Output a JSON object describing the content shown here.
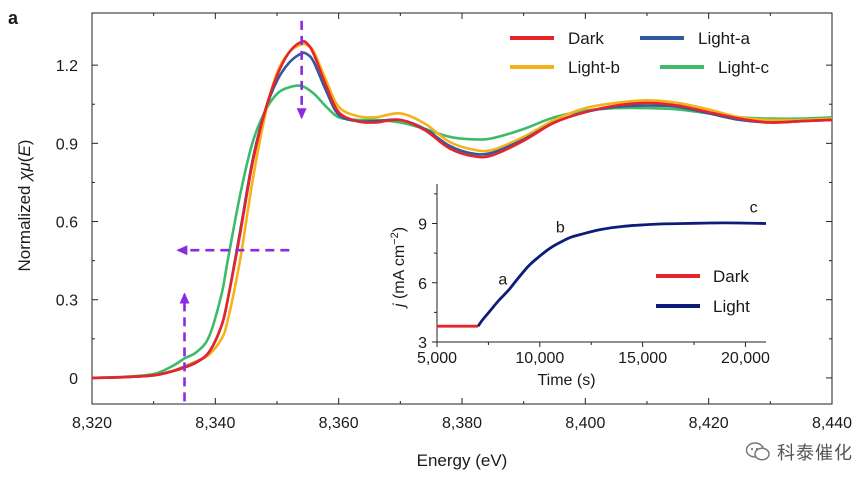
{
  "panel_label": "a",
  "watermark": {
    "text": "科泰催化",
    "icon": "wechat-icon"
  },
  "chart_data": [
    {
      "type": "line",
      "title": "",
      "xlabel": "Energy (eV)",
      "ylabel_parts": [
        "Normalized ",
        "χμ",
        "(",
        "E",
        ")"
      ],
      "xlim": [
        8320,
        8440
      ],
      "ylim": [
        -0.1,
        1.4
      ],
      "xticks": [
        8320,
        8340,
        8360,
        8380,
        8400,
        8420,
        8440
      ],
      "xtick_labels": [
        "8,320",
        "8,340",
        "8,360",
        "8,380",
        "8,400",
        "8,420",
        "8,440"
      ],
      "yticks": [
        0,
        0.3,
        0.6,
        0.9,
        1.2
      ],
      "ytick_labels": [
        "0",
        "0.3",
        "0.6",
        "0.9",
        "1.2"
      ],
      "legend_position": "top-right",
      "legend_columns": 2,
      "series": [
        {
          "name": "Dark",
          "color": "#e8242b",
          "x": [
            8320,
            8325,
            8330,
            8333,
            8335,
            8337,
            8339,
            8341,
            8342,
            8344,
            8346,
            8348,
            8350,
            8352,
            8354,
            8355,
            8356,
            8358,
            8360,
            8363,
            8366,
            8370,
            8374,
            8378,
            8382,
            8385,
            8390,
            8395,
            8400,
            8405,
            8410,
            8415,
            8420,
            8425,
            8430,
            8435,
            8440
          ],
          "y": [
            0,
            0.003,
            0.01,
            0.025,
            0.04,
            0.06,
            0.1,
            0.2,
            0.3,
            0.55,
            0.82,
            1.02,
            1.16,
            1.25,
            1.29,
            1.28,
            1.24,
            1.12,
            1.02,
            0.985,
            0.98,
            0.99,
            0.95,
            0.88,
            0.85,
            0.855,
            0.91,
            0.98,
            1.02,
            1.045,
            1.055,
            1.045,
            1.02,
            0.995,
            0.98,
            0.985,
            0.99
          ]
        },
        {
          "name": "Light-a",
          "color": "#2f5a9e",
          "x": [
            8320,
            8325,
            8330,
            8333,
            8335,
            8337,
            8339,
            8341,
            8342,
            8344,
            8346,
            8348,
            8350,
            8352,
            8354,
            8355,
            8356,
            8358,
            8360,
            8363,
            8366,
            8370,
            8374,
            8378,
            8382,
            8385,
            8390,
            8395,
            8400,
            8405,
            8410,
            8415,
            8420,
            8425,
            8430,
            8435,
            8440
          ],
          "y": [
            0,
            0.003,
            0.01,
            0.026,
            0.042,
            0.062,
            0.1,
            0.2,
            0.3,
            0.56,
            0.83,
            1.02,
            1.14,
            1.21,
            1.245,
            1.24,
            1.21,
            1.1,
            1.01,
            0.985,
            0.985,
            0.99,
            0.955,
            0.89,
            0.86,
            0.865,
            0.915,
            0.98,
            1.02,
            1.04,
            1.045,
            1.04,
            1.015,
            0.99,
            0.98,
            0.985,
            0.99
          ]
        },
        {
          "name": "Light-b",
          "color": "#f5b21a",
          "x": [
            8320,
            8325,
            8330,
            8333,
            8335,
            8337,
            8339,
            8341,
            8342,
            8344,
            8346,
            8348,
            8350,
            8352,
            8354,
            8355,
            8356,
            8358,
            8360,
            8363,
            8366,
            8370,
            8374,
            8378,
            8382,
            8385,
            8390,
            8395,
            8400,
            8405,
            8410,
            8415,
            8420,
            8425,
            8430,
            8435,
            8440
          ],
          "y": [
            0,
            0.003,
            0.01,
            0.027,
            0.045,
            0.065,
            0.09,
            0.15,
            0.22,
            0.45,
            0.75,
            1.0,
            1.17,
            1.25,
            1.28,
            1.275,
            1.25,
            1.14,
            1.04,
            1.005,
            1.0,
            1.015,
            0.975,
            0.905,
            0.875,
            0.875,
            0.925,
            0.99,
            1.035,
            1.055,
            1.065,
            1.055,
            1.03,
            1.0,
            0.99,
            0.99,
            0.995
          ]
        },
        {
          "name": "Light-c",
          "color": "#3dba6a",
          "x": [
            8320,
            8325,
            8330,
            8333,
            8335,
            8337,
            8339,
            8341,
            8342,
            8344,
            8346,
            8348,
            8350,
            8352,
            8354,
            8356,
            8358,
            8360,
            8363,
            8366,
            8370,
            8374,
            8378,
            8382,
            8385,
            8390,
            8395,
            8400,
            8405,
            8410,
            8415,
            8420,
            8425,
            8430,
            8435,
            8440
          ],
          "y": [
            0,
            0.004,
            0.015,
            0.045,
            0.075,
            0.1,
            0.16,
            0.32,
            0.45,
            0.7,
            0.9,
            1.02,
            1.09,
            1.115,
            1.12,
            1.09,
            1.04,
            1.0,
            0.99,
            0.99,
            0.98,
            0.955,
            0.925,
            0.915,
            0.92,
            0.955,
            1.0,
            1.025,
            1.035,
            1.035,
            1.03,
            1.015,
            1.0,
            0.995,
            0.995,
            1.0
          ]
        }
      ],
      "annotations": [
        {
          "kind": "dashed-arrow-down",
          "color": "#8a2be2",
          "x": 8354,
          "y_from": 1.37,
          "y_to": 1.0
        },
        {
          "kind": "dashed-arrow-left",
          "color": "#8a2be2",
          "y": 0.49,
          "x_from": 8352,
          "x_to": 8334
        },
        {
          "kind": "dashed-arrow-up",
          "color": "#8a2be2",
          "x": 8335,
          "y_from": -0.09,
          "y_to": 0.32
        }
      ]
    },
    {
      "type": "line",
      "title": "",
      "xlabel": "Time (s)",
      "ylabel_parts": [
        "j",
        " (mA cm",
        "−2",
        ")"
      ],
      "xlim": [
        5000,
        21000
      ],
      "ylim": [
        3,
        11
      ],
      "xticks": [
        5000,
        10000,
        15000,
        20000
      ],
      "xtick_labels": [
        "5,000",
        "10,000",
        "15,000",
        "20,000"
      ],
      "yticks": [
        3,
        6,
        9
      ],
      "ytick_labels": [
        "3",
        "6",
        "9"
      ],
      "legend_position": "bottom-right",
      "series": [
        {
          "name": "Dark",
          "color": "#e8242b",
          "x": [
            5000,
            7000
          ],
          "y": [
            3.8,
            3.8
          ]
        },
        {
          "name": "Light",
          "color": "#0d1c7a",
          "x": [
            7000,
            7200,
            7600,
            8000,
            8500,
            9000,
            9500,
            10000,
            10500,
            11000,
            11500,
            12000,
            13000,
            14000,
            15000,
            16000,
            17000,
            18000,
            19000,
            20000,
            21000
          ],
          "y": [
            3.8,
            4.1,
            4.6,
            5.1,
            5.65,
            6.3,
            6.9,
            7.35,
            7.75,
            8.05,
            8.3,
            8.45,
            8.7,
            8.85,
            8.93,
            8.98,
            9.0,
            9.02,
            9.03,
            9.02,
            9.0
          ]
        }
      ],
      "annotations": [
        {
          "text": "a",
          "x": 8200,
          "y": 5.9
        },
        {
          "text": "b",
          "x": 11000,
          "y": 8.55
        },
        {
          "text": "c",
          "x": 20400,
          "y": 9.55
        }
      ]
    }
  ]
}
